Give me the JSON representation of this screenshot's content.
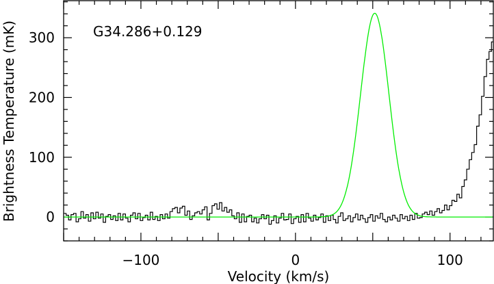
{
  "chart_data": {
    "type": "line",
    "annotation": "G34.286+0.129",
    "xlabel": "Velocity (km/s)",
    "ylabel": "Brightness Temperature (mK)",
    "xlim": [
      -150,
      128
    ],
    "ylim": [
      -40,
      362
    ],
    "x_ticks": [
      -100,
      0,
      100
    ],
    "x_tick_labels": [
      "−100",
      "0",
      "100"
    ],
    "y_ticks": [
      0,
      100,
      200,
      300
    ],
    "y_tick_labels": [
      "0",
      "100",
      "200",
      "300"
    ],
    "grid": false,
    "colors": {
      "observed": "#000000",
      "fit": "#00ee00",
      "frame": "#000000"
    },
    "observed_step": 1.6,
    "series": [
      {
        "style": "step",
        "values": [
          6,
          3,
          -5,
          4,
          6,
          -8,
          -3,
          9,
          -2,
          4,
          -7,
          7,
          -3,
          8,
          -2,
          5,
          -9,
          1,
          4,
          -4,
          2,
          -6,
          6,
          -5,
          5,
          -2,
          -8,
          3,
          7,
          -3,
          6,
          -6,
          -1,
          3,
          -5,
          8,
          -4,
          1,
          -6,
          4,
          -3,
          5,
          -2,
          9,
          14,
          16,
          7,
          15,
          18,
          3,
          10,
          -4,
          2,
          7,
          9,
          5,
          12,
          17,
          -5,
          6,
          19,
          22,
          13,
          24,
          10,
          16,
          8,
          12,
          2,
          -3,
          7,
          -9,
          5,
          -8,
          1,
          3,
          -8,
          -2,
          -10,
          -3,
          4,
          -3,
          3,
          -12,
          -6,
          2,
          -10,
          -2,
          6,
          -5,
          -4,
          5,
          -11,
          -3,
          1,
          -9,
          4,
          -8,
          6,
          -2,
          -7,
          3,
          -5,
          -1,
          5,
          -9,
          2,
          -6,
          3,
          -4,
          -10,
          1,
          7,
          -6,
          -3,
          2,
          -8,
          -1,
          5,
          -5,
          3,
          -3,
          -9,
          -1,
          4,
          -7,
          2,
          -2,
          6,
          -4,
          -8,
          0,
          -5,
          3,
          -2,
          -7,
          4,
          -3,
          1,
          -6,
          3,
          -4,
          6,
          -2,
          -1,
          5,
          8,
          4,
          10,
          3,
          9,
          14,
          7,
          11,
          20,
          12,
          19,
          28,
          26,
          38,
          32,
          51,
          62,
          80,
          96,
          108,
          121,
          152,
          171,
          202,
          235,
          264,
          277,
          293,
          315,
          338,
          356,
          342,
          352,
          333,
          315,
          297,
          280,
          258,
          232,
          214,
          187,
          163,
          132,
          110,
          93,
          80,
          63,
          47,
          36,
          25,
          18,
          21,
          10,
          4,
          12,
          6,
          -4,
          3,
          9,
          -2,
          -6,
          4,
          -3,
          2,
          -7,
          5,
          -4,
          -9,
          1,
          6,
          -5,
          2,
          -8,
          -3,
          4,
          -1,
          -6,
          3,
          -10,
          -2,
          5,
          -4,
          1,
          -8,
          -3,
          2,
          -6,
          4,
          -2,
          -7,
          3,
          -1,
          -5,
          4,
          -9,
          1,
          -3,
          5,
          -6,
          -2,
          2,
          -4
        ]
      },
      {
        "style": "line",
        "gaussian": {
          "amplitude": 341,
          "center": 51.3,
          "fwhm": 21.5
        }
      }
    ]
  }
}
